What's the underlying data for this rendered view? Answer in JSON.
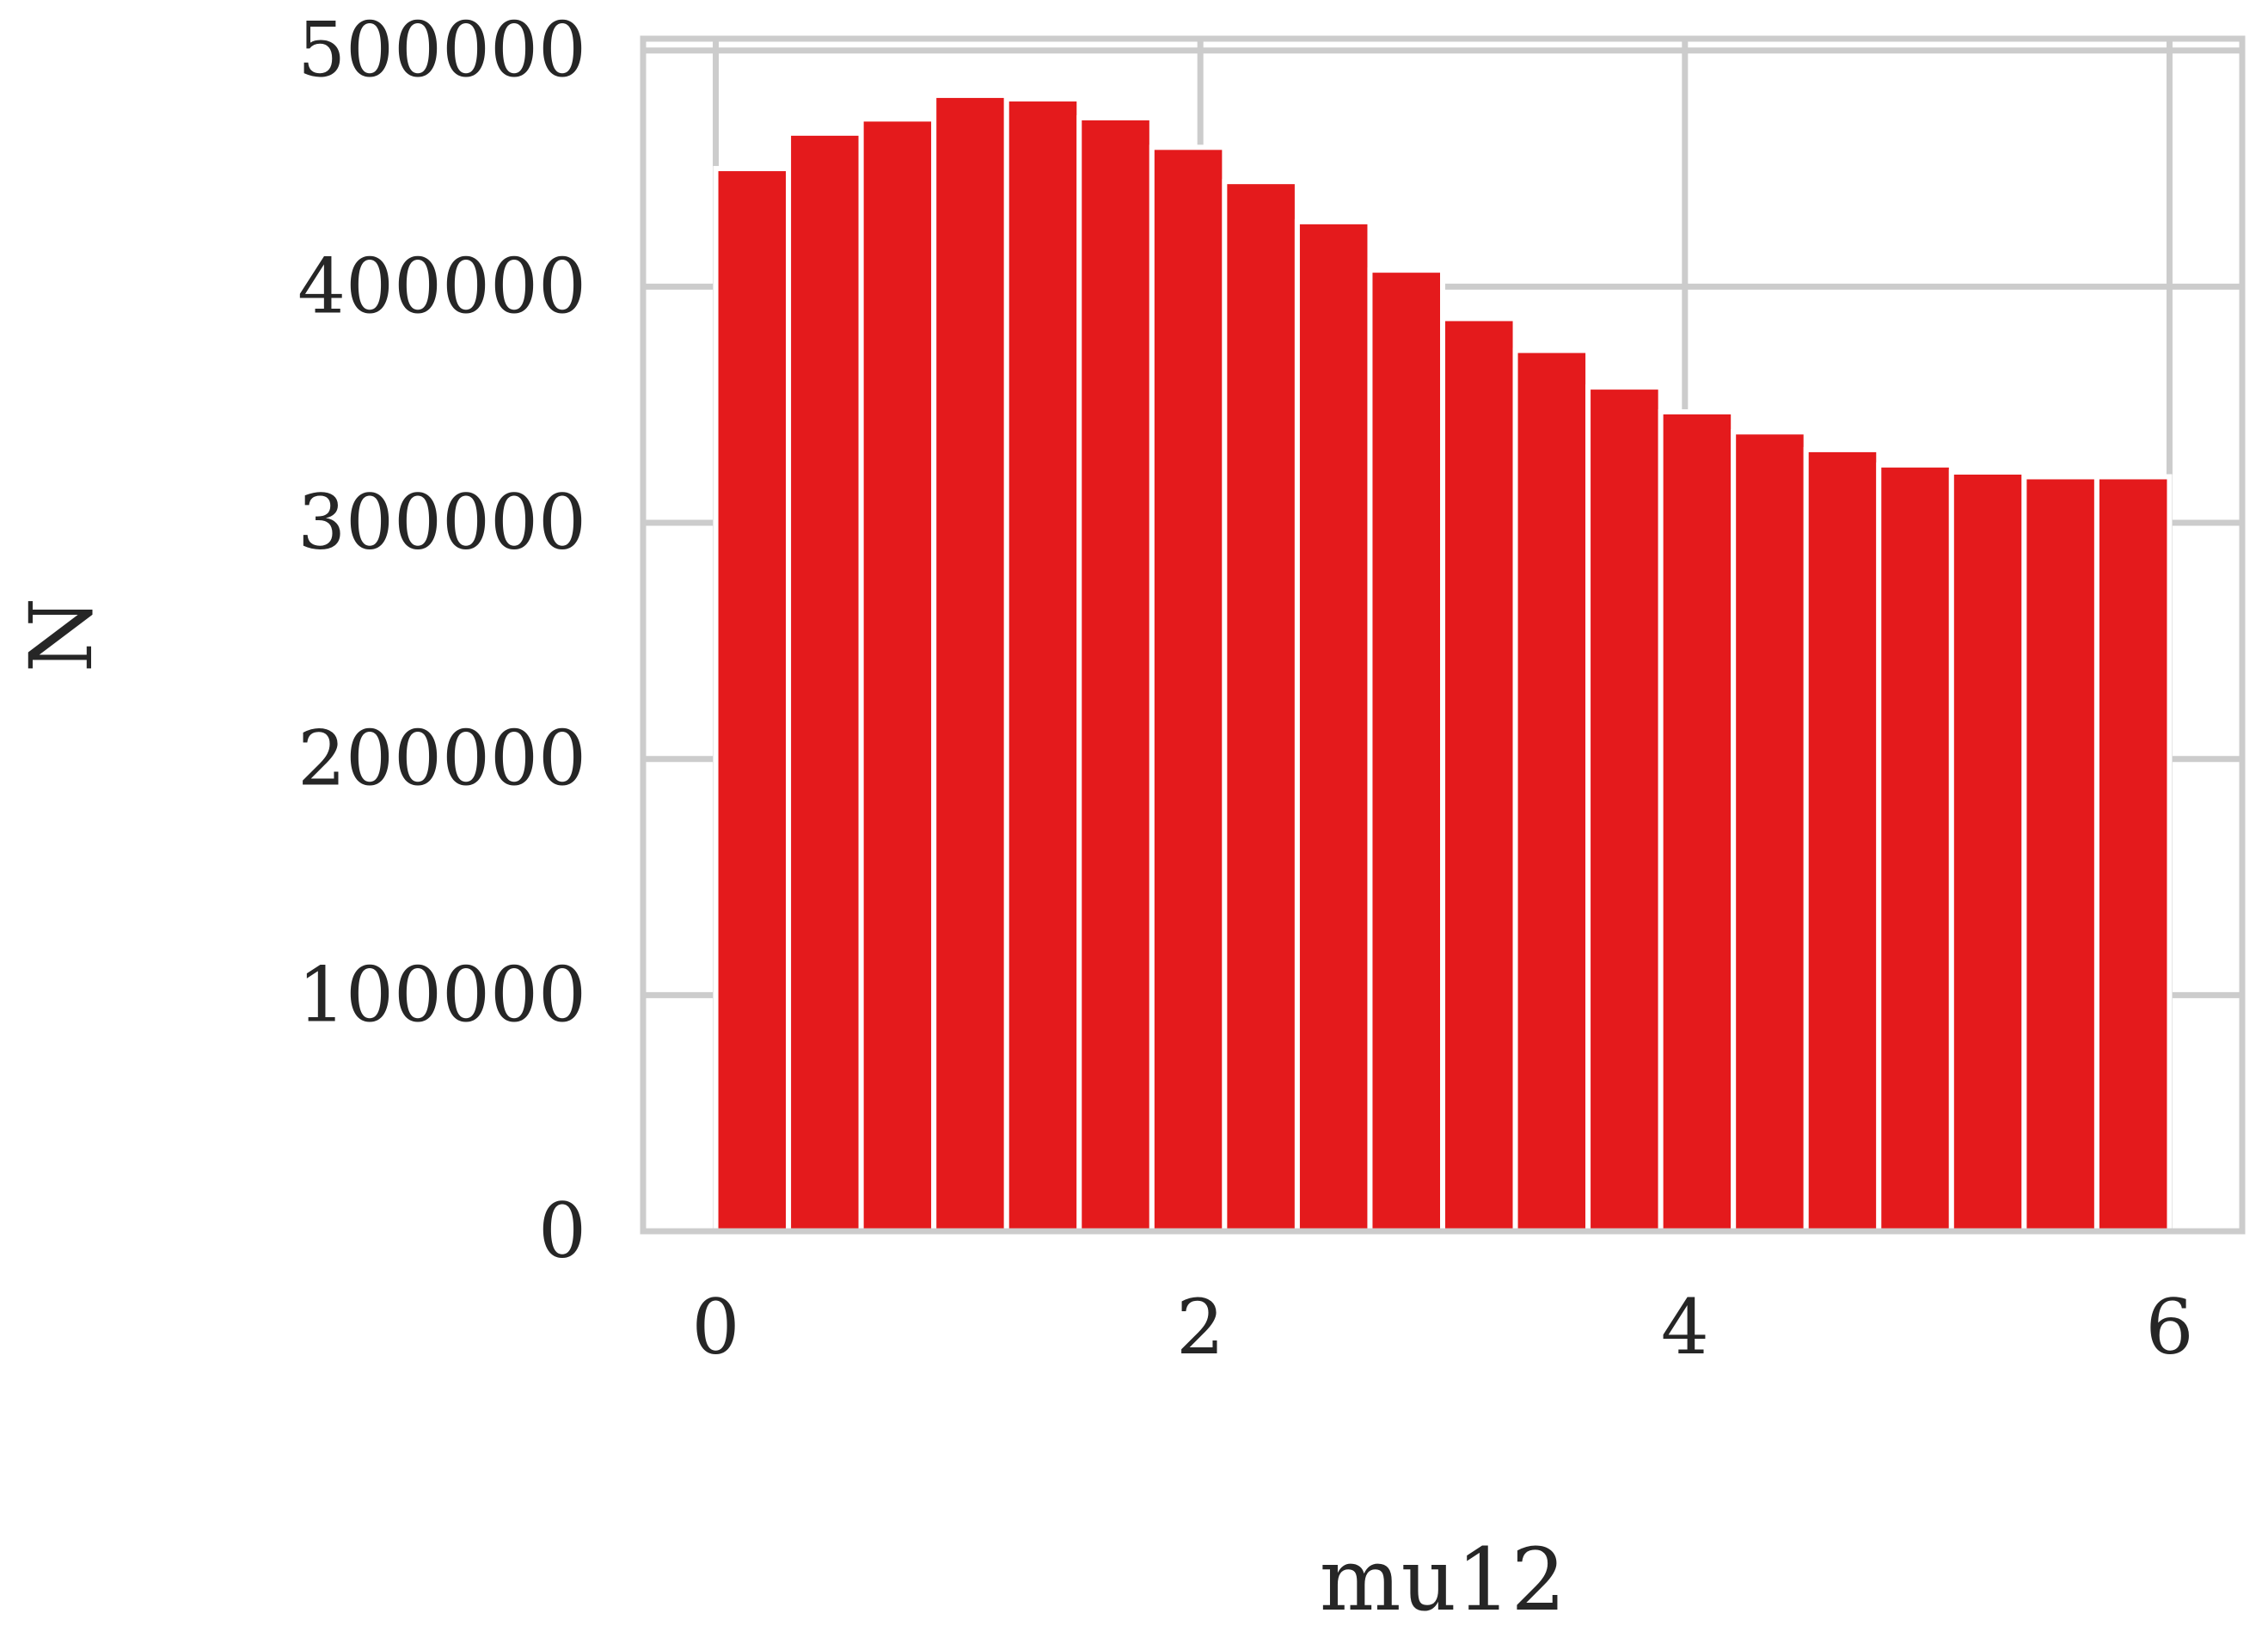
{
  "chart_data": {
    "type": "bar",
    "title": "",
    "xlabel": "mu12",
    "ylabel": "N",
    "bin_edges": [
      0,
      0.3,
      0.6,
      0.9,
      1.2,
      1.5,
      1.8,
      2.1,
      2.4,
      2.7,
      3.0,
      3.3,
      3.6,
      3.9,
      4.2,
      4.5,
      4.8,
      5.1,
      5.4,
      5.7,
      6.0
    ],
    "values": [
      450000,
      465000,
      471000,
      481000,
      479500,
      471500,
      459000,
      444500,
      427500,
      407000,
      386500,
      373000,
      357500,
      347000,
      338500,
      331000,
      324500,
      321500,
      319500,
      319500
    ],
    "xlim": [
      -0.3,
      6.3
    ],
    "ylim": [
      0,
      505000
    ],
    "xticks": [
      0,
      2,
      4,
      6
    ],
    "xtick_labels": [
      "0",
      "2",
      "4",
      "6"
    ],
    "yticks": [
      0,
      100000,
      200000,
      300000,
      400000,
      500000
    ],
    "ytick_labels": [
      "0",
      "100000",
      "200000",
      "300000",
      "400000",
      "500000"
    ],
    "grid": true,
    "bar_color": "#e41a1c",
    "grid_color": "#cccccc",
    "text_color": "#262626"
  }
}
